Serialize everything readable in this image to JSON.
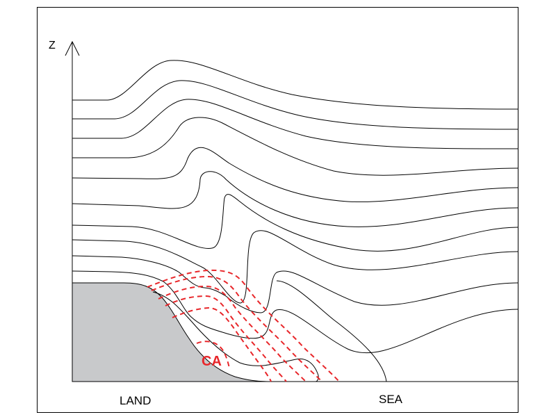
{
  "diagram": {
    "axis_label": "Z",
    "land_label": "LAND",
    "sea_label": "SEA",
    "ca_label": "CA"
  },
  "colors": {
    "land_fill": "#c8c9cb",
    "contour": "#000000",
    "dashed_contour": "#e8262a",
    "ca_text": "#e8262a"
  }
}
